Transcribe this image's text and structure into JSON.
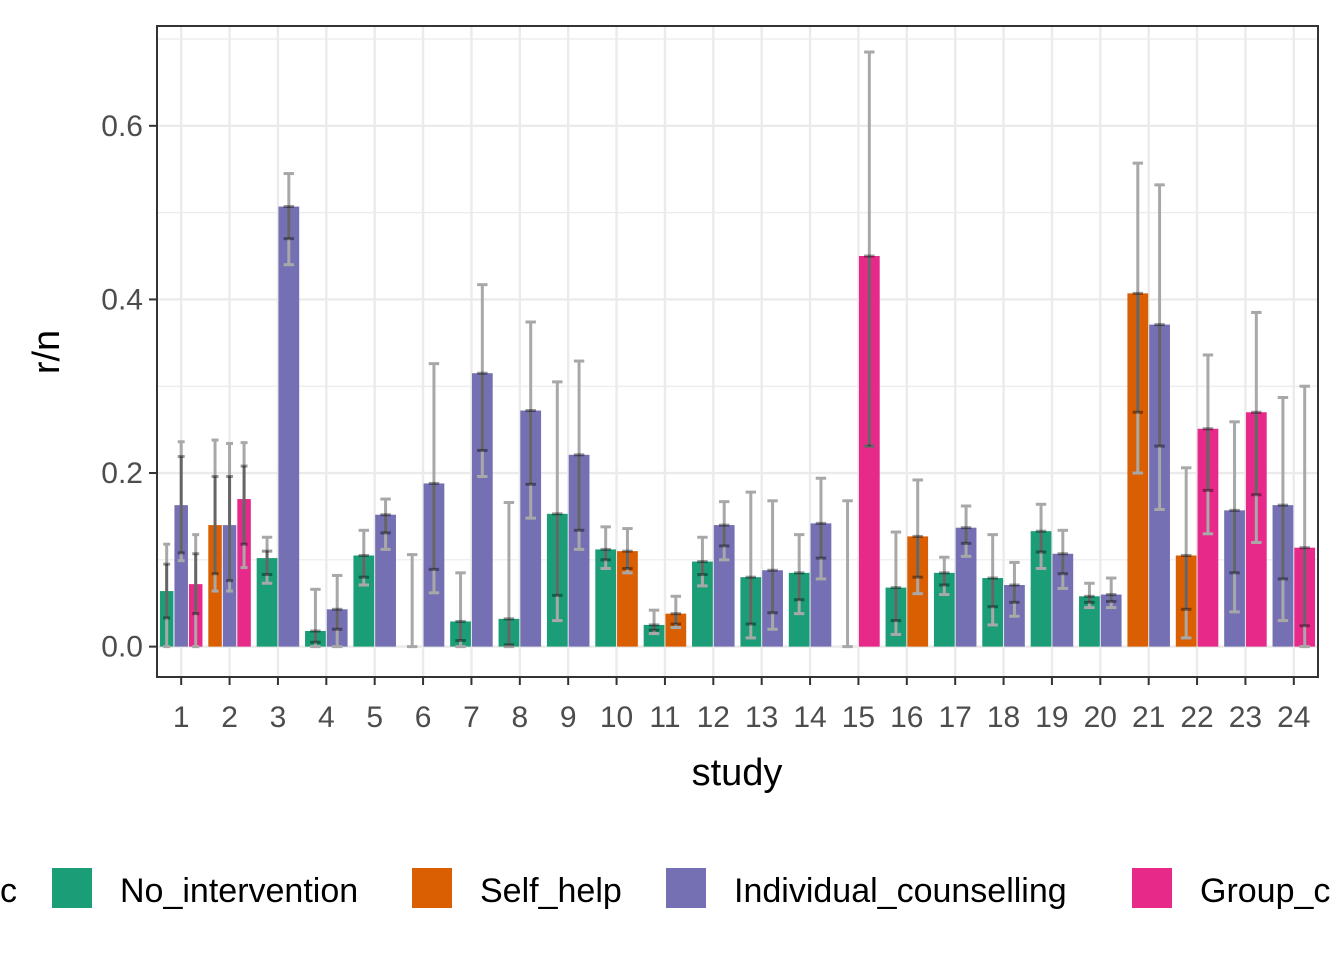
{
  "chart_data": {
    "type": "bar",
    "xlabel": "study",
    "ylabel": "r/n",
    "ylim": [
      -0.035,
      0.715
    ],
    "yticks": [
      0.0,
      0.2,
      0.4,
      0.6
    ],
    "ytick_labels": [
      "0.0",
      "0.2",
      "0.4",
      "0.6"
    ],
    "grid": true,
    "legend_position": "bottom",
    "legend_title": "trtc",
    "legend_title_visible": "c",
    "categories": [
      "1",
      "2",
      "3",
      "4",
      "5",
      "6",
      "7",
      "8",
      "9",
      "10",
      "11",
      "12",
      "13",
      "14",
      "15",
      "16",
      "17",
      "18",
      "19",
      "20",
      "21",
      "22",
      "23",
      "24"
    ],
    "series": [
      {
        "name": "No_intervention",
        "color": "#1B9E77"
      },
      {
        "name": "Self_help",
        "color": "#D95F02"
      },
      {
        "name": "Individual_counselling",
        "color": "#7570B3"
      },
      {
        "name": "Group_counselling",
        "color": "#E7298A"
      }
    ],
    "legend_labels": [
      "No_intervention",
      "Self_help",
      "Individual_counselling",
      "Group_c"
    ],
    "arms": [
      {
        "study": 1,
        "trt": "No_intervention",
        "value": 0.064,
        "se_lo": 0.033,
        "se_hi": 0.095,
        "ci_lo": 0.0,
        "ci_hi": 0.118
      },
      {
        "study": 1,
        "trt": "Individual_counselling",
        "value": 0.163,
        "se_lo": 0.108,
        "se_hi": 0.219,
        "ci_lo": 0.099,
        "ci_hi": 0.236
      },
      {
        "study": 1,
        "trt": "Group_counselling",
        "value": 0.072,
        "se_lo": 0.038,
        "se_hi": 0.107,
        "ci_lo": 0.0,
        "ci_hi": 0.129
      },
      {
        "study": 2,
        "trt": "Self_help",
        "value": 0.14,
        "se_lo": 0.084,
        "se_hi": 0.196,
        "ci_lo": 0.064,
        "ci_hi": 0.238
      },
      {
        "study": 2,
        "trt": "Individual_counselling",
        "value": 0.14,
        "se_lo": 0.076,
        "se_hi": 0.196,
        "ci_lo": 0.064,
        "ci_hi": 0.234
      },
      {
        "study": 2,
        "trt": "Group_counselling",
        "value": 0.17,
        "se_lo": 0.118,
        "se_hi": 0.208,
        "ci_lo": 0.091,
        "ci_hi": 0.235
      },
      {
        "study": 3,
        "trt": "No_intervention",
        "value": 0.102,
        "se_lo": 0.083,
        "se_hi": 0.11,
        "ci_lo": 0.073,
        "ci_hi": 0.126
      },
      {
        "study": 3,
        "trt": "Individual_counselling",
        "value": 0.507,
        "se_lo": 0.47,
        "se_hi": 0.507,
        "ci_lo": 0.44,
        "ci_hi": 0.545
      },
      {
        "study": 4,
        "trt": "No_intervention",
        "value": 0.018,
        "se_lo": 0.005,
        "se_hi": 0.018,
        "ci_lo": 0.0,
        "ci_hi": 0.066
      },
      {
        "study": 4,
        "trt": "Individual_counselling",
        "value": 0.043,
        "se_lo": 0.02,
        "se_hi": 0.043,
        "ci_lo": 0.0,
        "ci_hi": 0.082
      },
      {
        "study": 5,
        "trt": "No_intervention",
        "value": 0.105,
        "se_lo": 0.08,
        "se_hi": 0.105,
        "ci_lo": 0.071,
        "ci_hi": 0.134
      },
      {
        "study": 5,
        "trt": "Individual_counselling",
        "value": 0.152,
        "se_lo": 0.131,
        "se_hi": 0.152,
        "ci_lo": 0.112,
        "ci_hi": 0.17
      },
      {
        "study": 6,
        "trt": "No_intervention",
        "value": 0.0,
        "se_lo": 0.0,
        "se_hi": 0.0,
        "ci_lo": 0.0,
        "ci_hi": 0.106
      },
      {
        "study": 6,
        "trt": "Individual_counselling",
        "value": 0.188,
        "se_lo": 0.089,
        "se_hi": 0.188,
        "ci_lo": 0.062,
        "ci_hi": 0.326
      },
      {
        "study": 7,
        "trt": "No_intervention",
        "value": 0.029,
        "se_lo": 0.007,
        "se_hi": 0.029,
        "ci_lo": 0.0,
        "ci_hi": 0.085
      },
      {
        "study": 7,
        "trt": "Individual_counselling",
        "value": 0.315,
        "se_lo": 0.226,
        "se_hi": 0.315,
        "ci_lo": 0.196,
        "ci_hi": 0.417
      },
      {
        "study": 8,
        "trt": "No_intervention",
        "value": 0.032,
        "se_lo": 0.002,
        "se_hi": 0.032,
        "ci_lo": 0.0,
        "ci_hi": 0.166
      },
      {
        "study": 8,
        "trt": "Individual_counselling",
        "value": 0.272,
        "se_lo": 0.187,
        "se_hi": 0.272,
        "ci_lo": 0.148,
        "ci_hi": 0.374
      },
      {
        "study": 9,
        "trt": "No_intervention",
        "value": 0.153,
        "se_lo": 0.059,
        "se_hi": 0.153,
        "ci_lo": 0.03,
        "ci_hi": 0.305
      },
      {
        "study": 9,
        "trt": "Individual_counselling",
        "value": 0.221,
        "se_lo": 0.134,
        "se_hi": 0.221,
        "ci_lo": 0.112,
        "ci_hi": 0.329
      },
      {
        "study": 10,
        "trt": "No_intervention",
        "value": 0.112,
        "se_lo": 0.1,
        "se_hi": 0.112,
        "ci_lo": 0.09,
        "ci_hi": 0.138
      },
      {
        "study": 10,
        "trt": "Self_help",
        "value": 0.11,
        "se_lo": 0.09,
        "se_hi": 0.11,
        "ci_lo": 0.085,
        "ci_hi": 0.136
      },
      {
        "study": 11,
        "trt": "No_intervention",
        "value": 0.025,
        "se_lo": 0.019,
        "se_hi": 0.025,
        "ci_lo": 0.015,
        "ci_hi": 0.042
      },
      {
        "study": 11,
        "trt": "Self_help",
        "value": 0.038,
        "se_lo": 0.026,
        "se_hi": 0.038,
        "ci_lo": 0.022,
        "ci_hi": 0.058
      },
      {
        "study": 12,
        "trt": "No_intervention",
        "value": 0.098,
        "se_lo": 0.083,
        "se_hi": 0.098,
        "ci_lo": 0.07,
        "ci_hi": 0.126
      },
      {
        "study": 12,
        "trt": "Individual_counselling",
        "value": 0.14,
        "se_lo": 0.116,
        "se_hi": 0.14,
        "ci_lo": 0.1,
        "ci_hi": 0.167
      },
      {
        "study": 13,
        "trt": "No_intervention",
        "value": 0.08,
        "se_lo": 0.026,
        "se_hi": 0.08,
        "ci_lo": 0.01,
        "ci_hi": 0.178
      },
      {
        "study": 13,
        "trt": "Individual_counselling",
        "value": 0.088,
        "se_lo": 0.039,
        "se_hi": 0.088,
        "ci_lo": 0.02,
        "ci_hi": 0.168
      },
      {
        "study": 14,
        "trt": "No_intervention",
        "value": 0.085,
        "se_lo": 0.054,
        "se_hi": 0.085,
        "ci_lo": 0.038,
        "ci_hi": 0.129
      },
      {
        "study": 14,
        "trt": "Individual_counselling",
        "value": 0.142,
        "se_lo": 0.102,
        "se_hi": 0.142,
        "ci_lo": 0.078,
        "ci_hi": 0.194
      },
      {
        "study": 15,
        "trt": "No_intervention",
        "value": 0.0,
        "se_lo": 0.0,
        "se_hi": 0.0,
        "ci_lo": 0.0,
        "ci_hi": 0.168
      },
      {
        "study": 15,
        "trt": "Group_counselling",
        "value": 0.45,
        "se_lo": 0.231,
        "se_hi": 0.45,
        "ci_lo": 0.231,
        "ci_hi": 0.685
      },
      {
        "study": 16,
        "trt": "No_intervention",
        "value": 0.068,
        "se_lo": 0.03,
        "se_hi": 0.068,
        "ci_lo": 0.014,
        "ci_hi": 0.132
      },
      {
        "study": 16,
        "trt": "Self_help",
        "value": 0.127,
        "se_lo": 0.08,
        "se_hi": 0.127,
        "ci_lo": 0.061,
        "ci_hi": 0.192
      },
      {
        "study": 17,
        "trt": "No_intervention",
        "value": 0.085,
        "se_lo": 0.071,
        "se_hi": 0.085,
        "ci_lo": 0.06,
        "ci_hi": 0.103
      },
      {
        "study": 17,
        "trt": "Individual_counselling",
        "value": 0.137,
        "se_lo": 0.119,
        "se_hi": 0.137,
        "ci_lo": 0.104,
        "ci_hi": 0.162
      },
      {
        "study": 18,
        "trt": "No_intervention",
        "value": 0.079,
        "se_lo": 0.046,
        "se_hi": 0.079,
        "ci_lo": 0.025,
        "ci_hi": 0.129
      },
      {
        "study": 18,
        "trt": "Individual_counselling",
        "value": 0.071,
        "se_lo": 0.051,
        "se_hi": 0.071,
        "ci_lo": 0.035,
        "ci_hi": 0.097
      },
      {
        "study": 19,
        "trt": "No_intervention",
        "value": 0.133,
        "se_lo": 0.109,
        "se_hi": 0.133,
        "ci_lo": 0.09,
        "ci_hi": 0.164
      },
      {
        "study": 19,
        "trt": "Individual_counselling",
        "value": 0.107,
        "se_lo": 0.084,
        "se_hi": 0.107,
        "ci_lo": 0.067,
        "ci_hi": 0.134
      },
      {
        "study": 20,
        "trt": "No_intervention",
        "value": 0.058,
        "se_lo": 0.051,
        "se_hi": 0.058,
        "ci_lo": 0.045,
        "ci_hi": 0.073
      },
      {
        "study": 20,
        "trt": "Individual_counselling",
        "value": 0.06,
        "se_lo": 0.052,
        "se_hi": 0.06,
        "ci_lo": 0.045,
        "ci_hi": 0.079
      },
      {
        "study": 21,
        "trt": "Self_help",
        "value": 0.407,
        "se_lo": 0.27,
        "se_hi": 0.407,
        "ci_lo": 0.2,
        "ci_hi": 0.557
      },
      {
        "study": 21,
        "trt": "Individual_counselling",
        "value": 0.371,
        "se_lo": 0.231,
        "se_hi": 0.371,
        "ci_lo": 0.158,
        "ci_hi": 0.532
      },
      {
        "study": 22,
        "trt": "Self_help",
        "value": 0.105,
        "se_lo": 0.043,
        "se_hi": 0.105,
        "ci_lo": 0.01,
        "ci_hi": 0.206
      },
      {
        "study": 22,
        "trt": "Group_counselling",
        "value": 0.251,
        "se_lo": 0.18,
        "se_hi": 0.251,
        "ci_lo": 0.13,
        "ci_hi": 0.336
      },
      {
        "study": 23,
        "trt": "Individual_counselling",
        "value": 0.157,
        "se_lo": 0.085,
        "se_hi": 0.157,
        "ci_lo": 0.04,
        "ci_hi": 0.259
      },
      {
        "study": 23,
        "trt": "Group_counselling",
        "value": 0.27,
        "se_lo": 0.175,
        "se_hi": 0.27,
        "ci_lo": 0.12,
        "ci_hi": 0.385
      },
      {
        "study": 24,
        "trt": "Individual_counselling",
        "value": 0.163,
        "se_lo": 0.078,
        "se_hi": 0.163,
        "ci_lo": 0.03,
        "ci_hi": 0.287
      },
      {
        "study": 24,
        "trt": "Group_counselling",
        "value": 0.114,
        "se_lo": 0.024,
        "se_hi": 0.114,
        "ci_lo": 0.0,
        "ci_hi": 0.3
      }
    ]
  }
}
